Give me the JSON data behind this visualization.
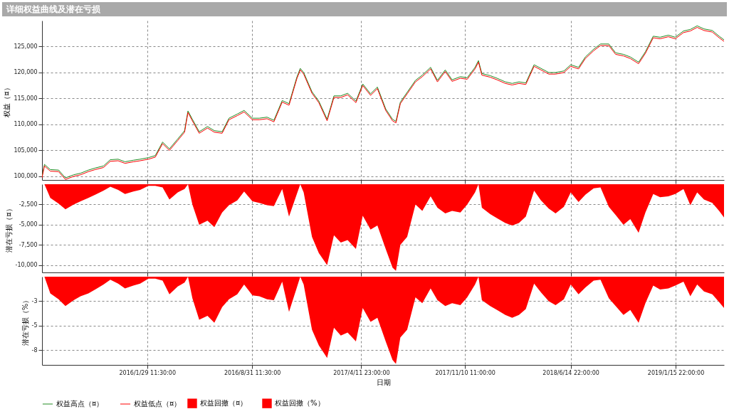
{
  "chart_data": [
    {
      "type": "line",
      "title": "详细权益曲线及潜在亏损",
      "ylabel": "权益（¤）",
      "grid": true,
      "legend": "bottom",
      "tick_labels": "y",
      "xlim": [
        "2015-06-28",
        "2019-04-25"
      ],
      "xticks": [
        {
          "value": "2016-01-29T11:30",
          "label": null
        },
        {
          "value": "2016-08-31T11:30",
          "label": null
        },
        {
          "value": "2017-04-11T23:00",
          "label": null
        },
        {
          "value": "2017-11-10T11:00",
          "label": null
        },
        {
          "value": "2018-06-14T22:00",
          "label": null
        },
        {
          "value": "2019-01-15T22:00",
          "label": null
        }
      ],
      "ylim": [
        99300,
        130000
      ],
      "yticks": [
        {
          "value": 100000,
          "label": "100,000"
        },
        {
          "value": 105000,
          "label": "105,000"
        },
        {
          "value": 110000,
          "label": "110,000"
        },
        {
          "value": 115000,
          "label": "115,000"
        },
        {
          "value": 120000,
          "label": "120,000"
        },
        {
          "value": 125000,
          "label": "125,000"
        }
      ],
      "x": [
        "2015-06-28",
        "2015-07-03",
        "2015-07-15",
        "2015-08-01",
        "2015-08-15",
        "2015-09-01",
        "2015-09-15",
        "2015-10-01",
        "2015-10-15",
        "2015-11-01",
        "2015-11-15",
        "2015-12-01",
        "2015-12-15",
        "2016-01-01",
        "2016-01-15",
        "2016-02-01",
        "2016-02-15",
        "2016-03-01",
        "2016-03-15",
        "2016-04-01",
        "2016-04-15",
        "2016-04-22",
        "2016-05-01",
        "2016-05-15",
        "2016-06-01",
        "2016-06-15",
        "2016-07-01",
        "2016-07-15",
        "2016-08-01",
        "2016-08-15",
        "2016-09-01",
        "2016-09-15",
        "2016-10-01",
        "2016-10-15",
        "2016-11-01",
        "2016-11-15",
        "2016-12-01",
        "2016-12-08",
        "2016-12-15",
        "2017-01-01",
        "2017-01-15",
        "2017-02-01",
        "2017-02-15",
        "2017-03-01",
        "2017-03-15",
        "2017-04-01",
        "2017-04-15",
        "2017-05-01",
        "2017-05-15",
        "2017-06-01",
        "2017-06-15",
        "2017-06-22",
        "2017-07-01",
        "2017-07-15",
        "2017-08-01",
        "2017-08-15",
        "2017-09-01",
        "2017-09-15",
        "2017-10-01",
        "2017-10-15",
        "2017-11-01",
        "2017-11-15",
        "2017-12-01",
        "2017-12-08",
        "2017-12-15",
        "2018-01-01",
        "2018-01-15",
        "2018-02-01",
        "2018-02-15",
        "2018-03-01",
        "2018-03-15",
        "2018-04-01",
        "2018-04-15",
        "2018-05-01",
        "2018-05-15",
        "2018-06-01",
        "2018-06-15",
        "2018-07-01",
        "2018-07-15",
        "2018-08-01",
        "2018-08-15",
        "2018-09-01",
        "2018-09-15",
        "2018-10-01",
        "2018-10-15",
        "2018-11-01",
        "2018-11-15",
        "2018-12-01",
        "2018-12-15",
        "2019-01-01",
        "2019-01-15",
        "2019-02-01",
        "2019-02-15",
        "2019-03-01",
        "2019-03-15",
        "2019-04-01",
        "2019-04-15",
        "2019-04-25"
      ],
      "series": [
        {
          "name": "权益高点（¤）",
          "color": "#228b22",
          "values": [
            100000,
            102300,
            101300,
            101200,
            99700,
            100300,
            100600,
            101200,
            101600,
            102000,
            103200,
            103300,
            102800,
            103100,
            103300,
            103600,
            104000,
            106600,
            105300,
            107200,
            108800,
            112600,
            111000,
            108600,
            109600,
            108800,
            108600,
            111200,
            112000,
            112700,
            111200,
            111200,
            111400,
            110800,
            114600,
            114000,
            119100,
            120800,
            120000,
            116300,
            114500,
            111000,
            115500,
            115500,
            116000,
            114500,
            117800,
            115900,
            117200,
            113000,
            111000,
            110600,
            114300,
            116200,
            118500,
            119500,
            121000,
            118500,
            120500,
            118600,
            119200,
            119000,
            121000,
            122300,
            119800,
            119400,
            118900,
            118200,
            117900,
            118200,
            118000,
            121500,
            120800,
            120000,
            120000,
            120300,
            121500,
            121000,
            123000,
            124500,
            125500,
            125500,
            123800,
            123500,
            123000,
            122000,
            124000,
            127000,
            126800,
            127200,
            126800,
            128000,
            128300,
            129000,
            128400,
            128100,
            127000,
            126300
          ]
        },
        {
          "name": "权益低点（¤）",
          "color": "#ff0000",
          "values": [
            99700,
            102000,
            101000,
            100900,
            99400,
            100000,
            100300,
            100900,
            101300,
            101700,
            102900,
            103000,
            102500,
            102800,
            103000,
            103300,
            103700,
            106300,
            105000,
            106900,
            108500,
            112300,
            110700,
            108300,
            109300,
            108500,
            108300,
            110900,
            111700,
            112400,
            110900,
            110900,
            111100,
            110500,
            114300,
            113700,
            118800,
            120500,
            119700,
            116000,
            114200,
            110700,
            115200,
            115200,
            115700,
            114200,
            117500,
            115600,
            116900,
            112700,
            110700,
            110300,
            114000,
            115900,
            118200,
            119200,
            120700,
            118200,
            120200,
            118300,
            118900,
            118700,
            120700,
            122000,
            119500,
            119100,
            118600,
            117900,
            117600,
            117900,
            117700,
            121200,
            120500,
            119700,
            119700,
            120000,
            121200,
            120700,
            122700,
            124200,
            125200,
            125200,
            123500,
            123200,
            122700,
            121700,
            123700,
            126700,
            126500,
            126900,
            126500,
            127700,
            128000,
            128700,
            128100,
            127800,
            126700,
            126000
          ]
        }
      ]
    },
    {
      "type": "area",
      "ylabel": "潜在亏损（¤）",
      "grid": true,
      "legend": "bottom",
      "tick_labels": "y",
      "xlim": [
        "2015-06-28",
        "2019-04-25"
      ],
      "xticks": [
        {
          "value": "2016-01-29T11:30",
          "label": null
        },
        {
          "value": "2016-08-31T11:30",
          "label": null
        },
        {
          "value": "2017-04-11T23:00",
          "label": null
        },
        {
          "value": "2017-11-10T11:00",
          "label": null
        },
        {
          "value": "2018-06-14T22:00",
          "label": null
        },
        {
          "value": "2019-01-15T22:00",
          "label": null
        }
      ],
      "ylim": [
        -10900,
        0
      ],
      "yticks": [
        {
          "value": -2500,
          "label": "-2,500"
        },
        {
          "value": -5000,
          "label": "-5,000"
        },
        {
          "value": -7500,
          "label": "-7,500"
        },
        {
          "value": -10000,
          "label": "-10,000"
        }
      ],
      "x": [
        "2015-06-28",
        "2015-07-03",
        "2015-07-15",
        "2015-08-01",
        "2015-08-15",
        "2015-09-01",
        "2015-09-15",
        "2015-10-01",
        "2015-10-15",
        "2015-11-01",
        "2015-11-15",
        "2015-12-01",
        "2015-12-15",
        "2016-01-01",
        "2016-01-15",
        "2016-02-01",
        "2016-02-15",
        "2016-03-01",
        "2016-03-15",
        "2016-04-01",
        "2016-04-15",
        "2016-04-22",
        "2016-05-01",
        "2016-05-15",
        "2016-06-01",
        "2016-06-15",
        "2016-07-01",
        "2016-07-15",
        "2016-08-01",
        "2016-08-15",
        "2016-09-01",
        "2016-09-15",
        "2016-10-01",
        "2016-10-15",
        "2016-11-01",
        "2016-11-15",
        "2016-12-01",
        "2016-12-08",
        "2016-12-15",
        "2017-01-01",
        "2017-01-15",
        "2017-02-01",
        "2017-02-15",
        "2017-03-01",
        "2017-03-15",
        "2017-04-01",
        "2017-04-15",
        "2017-05-01",
        "2017-05-15",
        "2017-06-01",
        "2017-06-15",
        "2017-06-22",
        "2017-07-01",
        "2017-07-15",
        "2017-08-01",
        "2017-08-15",
        "2017-09-01",
        "2017-09-15",
        "2017-10-01",
        "2017-10-15",
        "2017-11-01",
        "2017-11-15",
        "2017-12-01",
        "2017-12-08",
        "2017-12-15",
        "2018-01-01",
        "2018-01-15",
        "2018-02-01",
        "2018-02-15",
        "2018-03-01",
        "2018-03-15",
        "2018-04-01",
        "2018-04-15",
        "2018-05-01",
        "2018-05-15",
        "2018-06-01",
        "2018-06-15",
        "2018-07-01",
        "2018-07-15",
        "2018-08-01",
        "2018-08-15",
        "2018-09-01",
        "2018-09-15",
        "2018-10-01",
        "2018-10-15",
        "2018-11-01",
        "2018-11-15",
        "2018-12-01",
        "2018-12-15",
        "2019-01-01",
        "2019-01-15",
        "2019-02-01",
        "2019-02-15",
        "2019-03-01",
        "2019-03-15",
        "2019-04-01",
        "2019-04-15",
        "2019-04-25"
      ],
      "series": [
        {
          "name": "权益回撤（¤）",
          "color": "#ff0000",
          "values": [
            0,
            0,
            -1700,
            -2400,
            -3100,
            -2500,
            -2100,
            -1700,
            -1300,
            -800,
            -300,
            -700,
            -1200,
            -900,
            -700,
            -200,
            -200,
            -400,
            -1900,
            -1000,
            -600,
            0,
            -2500,
            -5000,
            -4500,
            -5300,
            -3500,
            -2600,
            -2000,
            -900,
            -2100,
            -2300,
            -2600,
            -2700,
            -600,
            -4000,
            -1200,
            0,
            -1000,
            -6500,
            -8500,
            -10000,
            -6300,
            -7200,
            -6900,
            -8000,
            -3900,
            -5600,
            -5100,
            -8000,
            -10300,
            -10700,
            -7500,
            -6500,
            -2500,
            -3300,
            -1500,
            -2900,
            -3600,
            -3300,
            -3500,
            -2500,
            -1000,
            0,
            -2900,
            -3700,
            -4200,
            -4800,
            -5100,
            -4800,
            -4000,
            -800,
            -2000,
            -3000,
            -3600,
            -2800,
            -1000,
            -2200,
            -1300,
            -500,
            -400,
            -2800,
            -3800,
            -5000,
            -4300,
            -6000,
            -3500,
            -1200,
            -1600,
            -1500,
            -1200,
            -600,
            -2600,
            -1000,
            -1900,
            -2300,
            -3300,
            -4100
          ]
        }
      ]
    },
    {
      "type": "area",
      "ylabel": "潜在亏损（%）",
      "xlabel": "日期",
      "grid": true,
      "legend": "bottom",
      "xlim": [
        "2015-06-28",
        "2019-04-25"
      ],
      "xticks": [
        {
          "value": "2016-01-29T11:30",
          "label": "2016/1/29 11:30:00"
        },
        {
          "value": "2016-08-31T11:30",
          "label": "2016/8/31 11:30:00"
        },
        {
          "value": "2017-04-11T23:00",
          "label": "2017/4/11 23:00:00"
        },
        {
          "value": "2017-11-10T11:00",
          "label": "2017/11/10 11:00:00"
        },
        {
          "value": "2018-06-14T22:00",
          "label": "2018/6/14 22:00:00"
        },
        {
          "value": "2019-01-15T22:00",
          "label": "2019/1/15 22:00:00"
        }
      ],
      "ylim": [
        -9,
        0
      ],
      "yticks": [
        {
          "value": -2.5,
          "label": "-3"
        },
        -5,
        {
          "value": -7.5,
          "label": "-8"
        }
      ],
      "x": [
        "2015-06-28",
        "2015-07-03",
        "2015-07-15",
        "2015-08-01",
        "2015-08-15",
        "2015-09-01",
        "2015-09-15",
        "2015-10-01",
        "2015-10-15",
        "2015-11-01",
        "2015-11-15",
        "2015-12-01",
        "2015-12-15",
        "2016-01-01",
        "2016-01-15",
        "2016-02-01",
        "2016-02-15",
        "2016-03-01",
        "2016-03-15",
        "2016-04-01",
        "2016-04-15",
        "2016-04-22",
        "2016-05-01",
        "2016-05-15",
        "2016-06-01",
        "2016-06-15",
        "2016-07-01",
        "2016-07-15",
        "2016-08-01",
        "2016-08-15",
        "2016-09-01",
        "2016-09-15",
        "2016-10-01",
        "2016-10-15",
        "2016-11-01",
        "2016-11-15",
        "2016-12-01",
        "2016-12-08",
        "2016-12-15",
        "2017-01-01",
        "2017-01-15",
        "2017-02-01",
        "2017-02-15",
        "2017-03-01",
        "2017-03-15",
        "2017-04-01",
        "2017-04-15",
        "2017-05-01",
        "2017-05-15",
        "2017-06-01",
        "2017-06-15",
        "2017-06-22",
        "2017-07-01",
        "2017-07-15",
        "2017-08-01",
        "2017-08-15",
        "2017-09-01",
        "2017-09-15",
        "2017-10-01",
        "2017-10-15",
        "2017-11-01",
        "2017-11-15",
        "2017-12-01",
        "2017-12-08",
        "2017-12-15",
        "2018-01-01",
        "2018-01-15",
        "2018-02-01",
        "2018-02-15",
        "2018-03-01",
        "2018-03-15",
        "2018-04-01",
        "2018-04-15",
        "2018-05-01",
        "2018-05-15",
        "2018-06-01",
        "2018-06-15",
        "2018-07-01",
        "2018-07-15",
        "2018-08-01",
        "2018-08-15",
        "2018-09-01",
        "2018-09-15",
        "2018-10-01",
        "2018-10-15",
        "2018-11-01",
        "2018-11-15",
        "2018-12-01",
        "2018-12-15",
        "2019-01-01",
        "2019-01-15",
        "2019-02-01",
        "2019-02-15",
        "2019-03-01",
        "2019-03-15",
        "2019-04-01",
        "2019-04-15",
        "2019-04-25"
      ],
      "series": [
        {
          "name": "权益回撤（%）",
          "color": "#ff0000",
          "values": [
            0,
            0,
            -1.7,
            -2.3,
            -3.0,
            -2.4,
            -2.0,
            -1.7,
            -1.3,
            -0.8,
            -0.3,
            -0.7,
            -1.2,
            -0.9,
            -0.7,
            -0.2,
            -0.2,
            -0.4,
            -1.8,
            -1.0,
            -0.6,
            0,
            -2.2,
            -4.4,
            -4.0,
            -4.7,
            -3.1,
            -2.3,
            -1.8,
            -0.8,
            -1.9,
            -2.0,
            -2.3,
            -2.4,
            -0.5,
            -3.6,
            -1.1,
            0,
            -0.8,
            -5.4,
            -7.0,
            -8.3,
            -5.2,
            -6.0,
            -5.7,
            -6.6,
            -3.2,
            -4.6,
            -4.2,
            -6.6,
            -8.5,
            -8.9,
            -6.2,
            -5.4,
            -2.1,
            -2.7,
            -1.2,
            -2.4,
            -3.0,
            -2.7,
            -2.9,
            -2.1,
            -0.8,
            0,
            -2.4,
            -3.0,
            -3.4,
            -3.9,
            -4.2,
            -3.9,
            -3.3,
            -0.7,
            -1.6,
            -2.5,
            -2.9,
            -2.3,
            -0.8,
            -1.8,
            -1.1,
            -0.4,
            -0.3,
            -2.2,
            -3.0,
            -3.9,
            -3.4,
            -4.7,
            -2.7,
            -0.9,
            -1.3,
            -1.2,
            -0.9,
            -0.5,
            -2.0,
            -0.8,
            -1.5,
            -1.8,
            -2.6,
            -3.2
          ]
        }
      ]
    }
  ]
}
